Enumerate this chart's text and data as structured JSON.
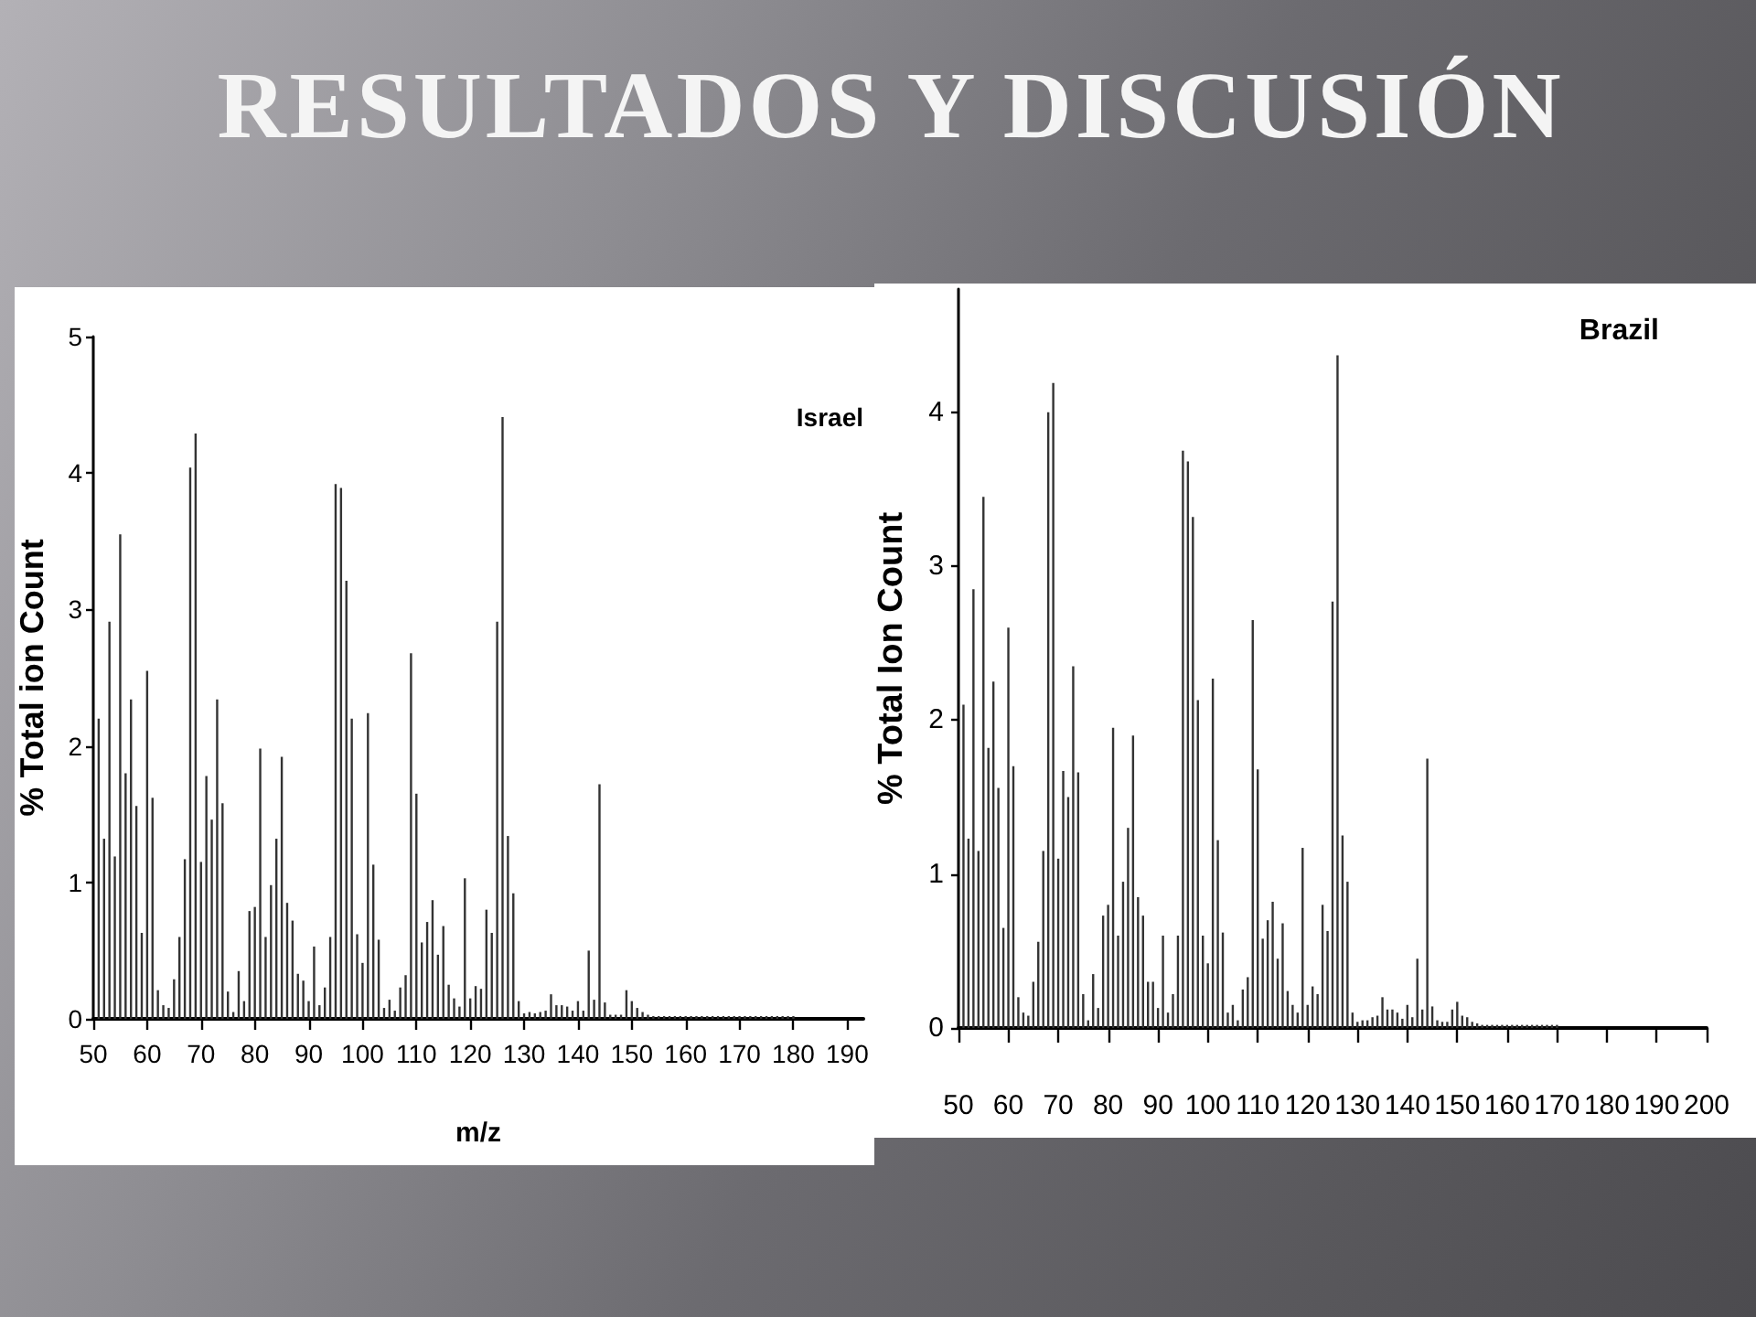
{
  "chart_data": [
    {
      "type": "bar",
      "title": "Israel",
      "annotations": [
        "RESULTADOS Y DISCUSIÓN"
      ],
      "xlabel": "m/z",
      "ylabel": "% Total ion Count",
      "color": "#333333",
      "x": [
        51,
        52,
        53,
        54,
        55,
        56,
        57,
        58,
        59,
        60,
        61,
        62,
        63,
        64,
        65,
        66,
        67,
        68,
        69,
        70,
        71,
        72,
        73,
        74,
        75,
        76,
        77,
        78,
        79,
        80,
        81,
        82,
        83,
        84,
        85,
        86,
        87,
        88,
        89,
        90,
        91,
        92,
        93,
        94,
        95,
        96,
        97,
        98,
        99,
        100,
        101,
        102,
        103,
        104,
        105,
        106,
        107,
        108,
        109,
        110,
        111,
        112,
        113,
        114,
        115,
        116,
        117,
        118,
        119,
        120,
        121,
        122,
        123,
        124,
        125,
        126,
        127,
        128,
        129,
        130,
        131,
        132,
        133,
        134,
        135,
        136,
        137,
        138,
        139,
        140,
        141,
        142,
        143,
        144,
        145,
        146,
        147,
        148,
        149,
        150,
        151,
        152,
        153,
        154,
        155,
        156,
        157,
        158,
        159,
        160,
        161,
        162,
        163,
        164,
        165,
        166,
        167,
        168,
        169,
        170,
        171,
        172,
        173,
        174,
        175,
        176,
        177,
        178,
        179,
        180
      ],
      "values": [
        2.2,
        1.32,
        2.91,
        1.19,
        3.55,
        1.8,
        2.34,
        1.56,
        0.63,
        2.55,
        1.62,
        0.21,
        0.1,
        0.08,
        0.29,
        0.6,
        1.17,
        4.04,
        4.29,
        1.15,
        1.78,
        1.46,
        2.34,
        1.58,
        0.2,
        0.05,
        0.35,
        0.13,
        0.79,
        0.82,
        1.98,
        0.6,
        0.98,
        1.32,
        1.92,
        0.85,
        0.72,
        0.33,
        0.28,
        0.13,
        0.53,
        0.1,
        0.23,
        0.6,
        3.92,
        3.89,
        3.21,
        2.2,
        0.62,
        0.41,
        2.24,
        1.13,
        0.58,
        0.08,
        0.14,
        0.06,
        0.23,
        0.32,
        2.68,
        1.65,
        0.56,
        0.71,
        0.87,
        0.47,
        0.68,
        0.25,
        0.15,
        0.09,
        1.03,
        0.15,
        0.24,
        0.22,
        0.8,
        0.63,
        2.91,
        4.41,
        1.34,
        0.92,
        0.13,
        0.04,
        0.05,
        0.04,
        0.05,
        0.06,
        0.18,
        0.1,
        0.1,
        0.09,
        0.06,
        0.13,
        0.06,
        0.5,
        0.14,
        1.72,
        0.12,
        0.03,
        0.03,
        0.03,
        0.21,
        0.13,
        0.08,
        0.05,
        0.03,
        0.02,
        0.02,
        0.02,
        0.02,
        0.02,
        0.02,
        0.02,
        0.02,
        0.02,
        0.02,
        0.02,
        0.02,
        0.02,
        0.02,
        0.02,
        0.02,
        0.02,
        0.02,
        0.02,
        0.02,
        0.02,
        0.02,
        0.02,
        0.02,
        0.02,
        0.02,
        0.02
      ],
      "xlim": [
        50,
        193
      ],
      "xticks": [
        50,
        60,
        70,
        80,
        90,
        100,
        110,
        120,
        130,
        140,
        150,
        160,
        170,
        180,
        190
      ],
      "ylim": [
        0,
        5
      ],
      "yticks": [
        0,
        1,
        2,
        3,
        4,
        5
      ]
    },
    {
      "type": "bar",
      "title": "Brazil",
      "ylabel": "% Total Ion Count",
      "color": "#333333",
      "x": [
        51,
        52,
        53,
        54,
        55,
        56,
        57,
        58,
        59,
        60,
        61,
        62,
        63,
        64,
        65,
        66,
        67,
        68,
        69,
        70,
        71,
        72,
        73,
        74,
        75,
        76,
        77,
        78,
        79,
        80,
        81,
        82,
        83,
        84,
        85,
        86,
        87,
        88,
        89,
        90,
        91,
        92,
        93,
        94,
        95,
        96,
        97,
        98,
        99,
        100,
        101,
        102,
        103,
        104,
        105,
        106,
        107,
        108,
        109,
        110,
        111,
        112,
        113,
        114,
        115,
        116,
        117,
        118,
        119,
        120,
        121,
        122,
        123,
        124,
        125,
        126,
        127,
        128,
        129,
        130,
        131,
        132,
        133,
        134,
        135,
        136,
        137,
        138,
        139,
        140,
        141,
        142,
        143,
        144,
        145,
        146,
        147,
        148,
        149,
        150,
        151,
        152,
        153,
        154,
        155,
        156,
        157,
        158,
        159,
        160,
        161,
        162,
        163,
        164,
        165,
        166,
        167,
        168,
        169,
        170
      ],
      "values": [
        2.1,
        1.23,
        2.85,
        1.15,
        3.45,
        1.82,
        2.25,
        1.56,
        0.65,
        2.6,
        1.7,
        0.2,
        0.1,
        0.08,
        0.3,
        0.56,
        1.15,
        4.0,
        4.19,
        1.1,
        1.67,
        1.5,
        2.35,
        1.66,
        0.22,
        0.05,
        0.35,
        0.13,
        0.73,
        0.8,
        1.95,
        0.6,
        0.95,
        1.3,
        1.9,
        0.85,
        0.73,
        0.3,
        0.3,
        0.13,
        0.6,
        0.1,
        0.22,
        0.6,
        3.75,
        3.68,
        3.32,
        2.13,
        0.6,
        0.42,
        2.27,
        1.22,
        0.62,
        0.1,
        0.15,
        0.05,
        0.25,
        0.33,
        2.65,
        1.68,
        0.58,
        0.7,
        0.82,
        0.45,
        0.68,
        0.24,
        0.15,
        0.1,
        1.17,
        0.15,
        0.27,
        0.22,
        0.8,
        0.63,
        2.77,
        4.37,
        1.25,
        0.95,
        0.1,
        0.04,
        0.05,
        0.05,
        0.07,
        0.08,
        0.2,
        0.12,
        0.12,
        0.1,
        0.06,
        0.15,
        0.07,
        0.45,
        0.12,
        1.75,
        0.14,
        0.05,
        0.04,
        0.04,
        0.12,
        0.17,
        0.08,
        0.07,
        0.04,
        0.03,
        0.02,
        0.02,
        0.02,
        0.02,
        0.02,
        0.02,
        0.02,
        0.02,
        0.02,
        0.02,
        0.02,
        0.02,
        0.02,
        0.02,
        0.02,
        0.02
      ],
      "xlim": [
        50,
        200
      ],
      "xticks": [
        50,
        60,
        70,
        80,
        90,
        100,
        110,
        120,
        130,
        140,
        150,
        160,
        170,
        180,
        190,
        200
      ],
      "ylim": [
        0,
        4.8
      ],
      "yticks": [
        0,
        1,
        2,
        3,
        4
      ]
    }
  ]
}
